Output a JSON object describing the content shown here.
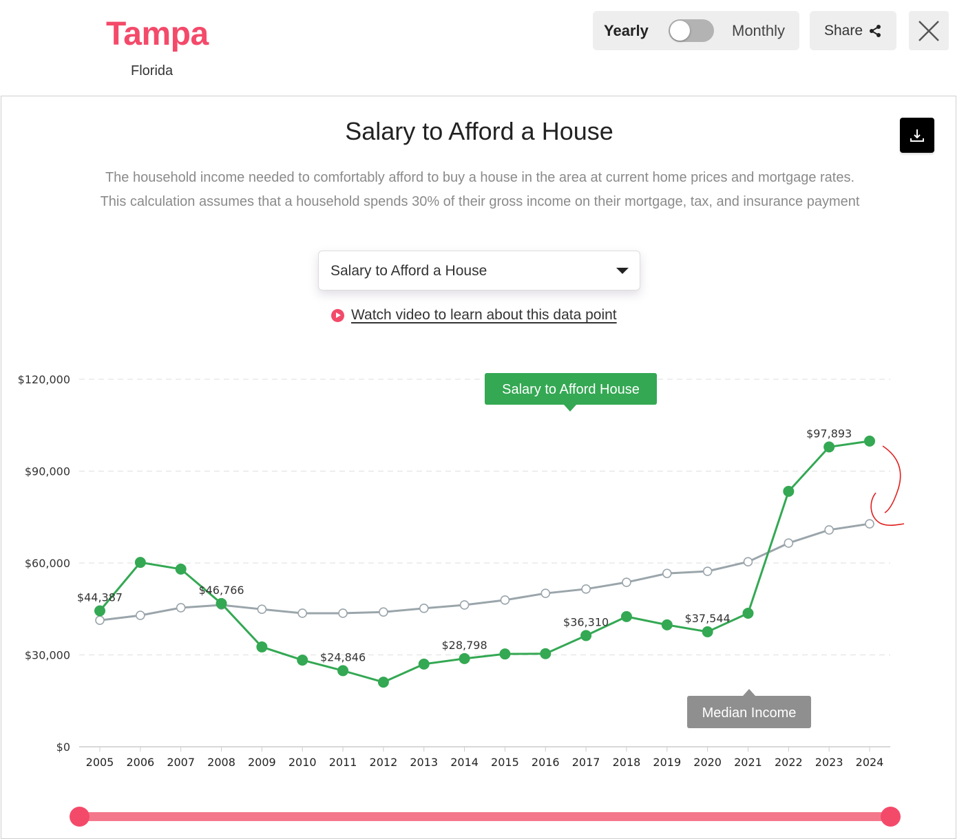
{
  "header": {
    "city": "Tampa",
    "state": "Florida",
    "toggle": {
      "left_label": "Yearly",
      "right_label": "Monthly",
      "selected": "Yearly"
    },
    "share_label": "Share",
    "share_icon": "share-icon",
    "close_icon": "close-icon"
  },
  "card": {
    "title": "Salary to Afford a House",
    "download_icon": "download-icon",
    "description": "The household income needed to comfortably afford to buy a house in the area at current home prices and mortgage rates. This calculation assumes that a household spends 30% of their gross income on their mortgage, tax, and insurance payment",
    "dropdown": {
      "selected": "Salary to Afford a House"
    },
    "video_link": "Watch video to learn about this data point"
  },
  "colors": {
    "brand": "#f44a6a",
    "series_green": "#34a853",
    "series_gray": "#9aa5ab",
    "grid": "#e3e3e3",
    "slider": "#f4788b"
  },
  "chart_data": {
    "type": "line",
    "title": "Salary to Afford a House",
    "xlabel": "",
    "ylabel": "",
    "ylim": [
      0,
      120000
    ],
    "yticks": [
      {
        "value": 0,
        "label": "$0"
      },
      {
        "value": 30000,
        "label": "$30,000"
      },
      {
        "value": 60000,
        "label": "$60,000"
      },
      {
        "value": 90000,
        "label": "$90,000"
      },
      {
        "value": 120000,
        "label": "$120,000"
      }
    ],
    "grid": "horizontal dashed",
    "x": [
      "2005",
      "2006",
      "2007",
      "2008",
      "2009",
      "2010",
      "2011",
      "2012",
      "2013",
      "2014",
      "2015",
      "2016",
      "2017",
      "2018",
      "2019",
      "2020",
      "2021",
      "2022",
      "2023",
      "2024"
    ],
    "series": [
      {
        "name": "Salary to Afford House",
        "color": "#34a853",
        "values": [
          44387,
          60200,
          58000,
          46766,
          32600,
          28300,
          24846,
          21100,
          27000,
          28798,
          30300,
          30400,
          36310,
          42500,
          39800,
          37544,
          43600,
          83400,
          97893,
          99800
        ]
      },
      {
        "name": "Median Income",
        "color": "#9aa5ab",
        "values": [
          41300,
          42900,
          45400,
          46300,
          44900,
          43600,
          43600,
          44000,
          45200,
          46300,
          47900,
          50100,
          51500,
          53700,
          56600,
          57300,
          60400,
          66500,
          70800,
          72800
        ]
      }
    ],
    "annotations": [
      {
        "x": "2005",
        "label": "$44,387"
      },
      {
        "x": "2008",
        "label": "$46,766"
      },
      {
        "x": "2011",
        "label": "$24,846"
      },
      {
        "x": "2014",
        "label": "$28,798"
      },
      {
        "x": "2017",
        "label": "$36,310"
      },
      {
        "x": "2020",
        "label": "$37,544"
      },
      {
        "x": "2023",
        "label": "$97,893"
      }
    ],
    "legend": [
      {
        "label": "Salary to Afford House",
        "position": "top-center callout",
        "color": "#34a853"
      },
      {
        "label": "Median Income",
        "position": "bottom-right callout",
        "color": "#8f8f8f"
      }
    ],
    "range_slider": {
      "start": "2005",
      "end": "2024"
    }
  }
}
